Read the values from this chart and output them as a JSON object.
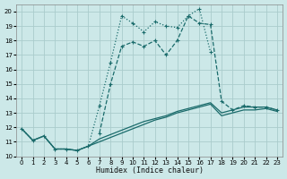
{
  "xlabel": "Humidex (Indice chaleur)",
  "bg_color": "#cce8e8",
  "grid_color": "#aacccc",
  "line_color": "#1a6b6b",
  "xlim": [
    -0.5,
    23.5
  ],
  "ylim": [
    10,
    20.5
  ],
  "xticks": [
    0,
    1,
    2,
    3,
    4,
    5,
    6,
    7,
    8,
    9,
    10,
    11,
    12,
    13,
    14,
    15,
    16,
    17,
    18,
    19,
    20,
    21,
    22,
    23
  ],
  "yticks": [
    10,
    11,
    12,
    13,
    14,
    15,
    16,
    17,
    18,
    19,
    20
  ],
  "line_dotted_x": [
    0,
    1,
    2,
    3,
    4,
    5,
    6,
    7,
    8,
    9,
    10,
    11,
    12,
    13,
    14,
    15,
    16,
    17
  ],
  "line_dotted_y": [
    11.9,
    11.1,
    11.4,
    10.5,
    10.5,
    10.4,
    10.7,
    13.5,
    16.5,
    19.7,
    19.2,
    18.6,
    19.3,
    19.0,
    18.9,
    19.7,
    20.2,
    17.2
  ],
  "line_dashed_x": [
    7,
    8,
    9,
    10,
    11,
    12,
    13,
    14,
    15,
    16,
    17,
    18,
    19,
    20,
    21,
    22,
    23
  ],
  "line_dashed_y": [
    11.6,
    15.0,
    17.6,
    17.9,
    17.6,
    18.0,
    17.0,
    18.0,
    19.7,
    19.2,
    19.1,
    13.8,
    13.2,
    13.5,
    13.4,
    13.4,
    13.2
  ],
  "line_flat1_x": [
    0,
    1,
    2,
    3,
    4,
    5,
    6,
    7,
    8,
    9,
    10,
    11,
    12,
    13,
    14,
    15,
    16,
    17,
    18,
    19,
    20,
    21,
    22,
    23
  ],
  "line_flat1_y": [
    11.9,
    11.1,
    11.4,
    10.5,
    10.5,
    10.4,
    10.7,
    11.2,
    11.5,
    11.8,
    12.1,
    12.4,
    12.6,
    12.8,
    13.1,
    13.3,
    13.5,
    13.7,
    13.0,
    13.2,
    13.4,
    13.4,
    13.4,
    13.2
  ],
  "line_flat2_x": [
    0,
    1,
    2,
    3,
    4,
    5,
    6,
    7,
    8,
    9,
    10,
    11,
    12,
    13,
    14,
    15,
    16,
    17,
    18,
    19,
    20,
    21,
    22,
    23
  ],
  "line_flat2_y": [
    11.9,
    11.1,
    11.4,
    10.5,
    10.5,
    10.4,
    10.7,
    11.0,
    11.3,
    11.6,
    11.9,
    12.2,
    12.5,
    12.7,
    13.0,
    13.2,
    13.4,
    13.6,
    12.8,
    13.0,
    13.2,
    13.2,
    13.3,
    13.1
  ]
}
